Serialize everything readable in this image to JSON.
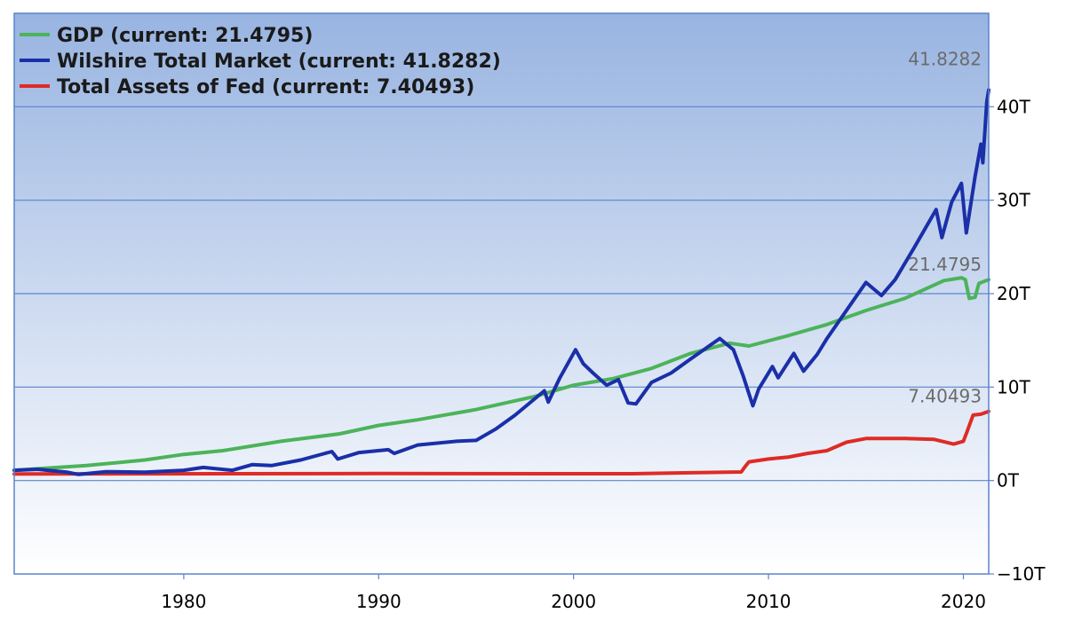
{
  "chart_data": {
    "type": "line",
    "title": "",
    "xlabel": "",
    "ylabel": "",
    "xlim": [
      1971.3,
      2021.3
    ],
    "ylim": [
      -10,
      50
    ],
    "grid": true,
    "legend_position": "top-left",
    "x_ticks": [
      1980,
      1990,
      2000,
      2010,
      2020
    ],
    "x_tick_labels": [
      "1980",
      "1990",
      "2000",
      "2010",
      "2020"
    ],
    "y_ticks": [
      40,
      30,
      20,
      10,
      0,
      -10
    ],
    "y_tick_labels": [
      "40T",
      "30T",
      "20T",
      "10T",
      "0T",
      "−10T"
    ],
    "series": [
      {
        "name": "GDP",
        "legend": "GDP (current: 21.4795)",
        "color": "#4cb35a",
        "end_label": "21.4795",
        "points": [
          [
            1971.3,
            1.1
          ],
          [
            1975,
            1.6
          ],
          [
            1978,
            2.2
          ],
          [
            1980,
            2.8
          ],
          [
            1982,
            3.2
          ],
          [
            1985,
            4.2
          ],
          [
            1988,
            5.0
          ],
          [
            1990,
            5.9
          ],
          [
            1992,
            6.5
          ],
          [
            1995,
            7.6
          ],
          [
            1998,
            9.0
          ],
          [
            2000,
            10.2
          ],
          [
            2002,
            10.9
          ],
          [
            2004,
            12.0
          ],
          [
            2006,
            13.6
          ],
          [
            2008,
            14.7
          ],
          [
            2009,
            14.4
          ],
          [
            2011,
            15.5
          ],
          [
            2013,
            16.7
          ],
          [
            2015,
            18.2
          ],
          [
            2017,
            19.5
          ],
          [
            2019,
            21.4
          ],
          [
            2019.9,
            21.7
          ],
          [
            2020.1,
            21.5
          ],
          [
            2020.3,
            19.5
          ],
          [
            2020.6,
            19.6
          ],
          [
            2020.8,
            21.1
          ],
          [
            2021.3,
            21.5
          ]
        ]
      },
      {
        "name": "Wilshire Total Market",
        "legend": "Wilshire Total Market (current: 41.8282)",
        "color": "#1a2fa8",
        "end_label": "41.8282",
        "points": [
          [
            1971.3,
            1.1
          ],
          [
            1972.5,
            1.2
          ],
          [
            1974,
            0.9
          ],
          [
            1974.6,
            0.65
          ],
          [
            1976,
            0.95
          ],
          [
            1978,
            0.9
          ],
          [
            1980,
            1.1
          ],
          [
            1981,
            1.4
          ],
          [
            1982.5,
            1.1
          ],
          [
            1983.5,
            1.7
          ],
          [
            1984.5,
            1.6
          ],
          [
            1986,
            2.2
          ],
          [
            1987.6,
            3.1
          ],
          [
            1987.9,
            2.3
          ],
          [
            1989,
            3.0
          ],
          [
            1990.5,
            3.3
          ],
          [
            1990.8,
            2.9
          ],
          [
            1992,
            3.8
          ],
          [
            1994,
            4.2
          ],
          [
            1995,
            4.3
          ],
          [
            1996,
            5.5
          ],
          [
            1997,
            7.0
          ],
          [
            1998.5,
            9.6
          ],
          [
            1998.7,
            8.4
          ],
          [
            1999.3,
            11.0
          ],
          [
            2000.1,
            14.0
          ],
          [
            2000.5,
            12.5
          ],
          [
            2001,
            11.5
          ],
          [
            2001.7,
            10.2
          ],
          [
            2002.3,
            10.8
          ],
          [
            2002.8,
            8.3
          ],
          [
            2003.2,
            8.2
          ],
          [
            2004,
            10.5
          ],
          [
            2005,
            11.5
          ],
          [
            2006,
            13.0
          ],
          [
            2007.5,
            15.2
          ],
          [
            2008.2,
            14.0
          ],
          [
            2008.7,
            11.2
          ],
          [
            2009.2,
            8.0
          ],
          [
            2009.5,
            9.8
          ],
          [
            2010.2,
            12.2
          ],
          [
            2010.5,
            11.0
          ],
          [
            2011.3,
            13.6
          ],
          [
            2011.8,
            11.7
          ],
          [
            2012.5,
            13.5
          ],
          [
            2013,
            15.2
          ],
          [
            2014,
            18.2
          ],
          [
            2015,
            21.2
          ],
          [
            2015.8,
            19.8
          ],
          [
            2016.5,
            21.5
          ],
          [
            2017.5,
            25.0
          ],
          [
            2018.6,
            29.0
          ],
          [
            2018.9,
            26.0
          ],
          [
            2019.4,
            29.8
          ],
          [
            2019.9,
            31.8
          ],
          [
            2020.15,
            26.5
          ],
          [
            2020.6,
            32.5
          ],
          [
            2020.9,
            36.0
          ],
          [
            2021.0,
            34.0
          ],
          [
            2021.2,
            40.5
          ],
          [
            2021.3,
            41.8
          ]
        ]
      },
      {
        "name": "Total Assets of Fed",
        "legend": "Total Assets of Fed (current: 7.40493)",
        "color": "#de2b26",
        "end_label": "7.40493",
        "points": [
          [
            1971.3,
            0.7
          ],
          [
            1990,
            0.75
          ],
          [
            2003,
            0.73
          ],
          [
            2008.6,
            0.92
          ],
          [
            2008.8,
            1.5
          ],
          [
            2009,
            2.0
          ],
          [
            2010,
            2.3
          ],
          [
            2011,
            2.5
          ],
          [
            2012,
            2.9
          ],
          [
            2013,
            3.2
          ],
          [
            2014,
            4.1
          ],
          [
            2015,
            4.5
          ],
          [
            2017,
            4.5
          ],
          [
            2018.5,
            4.4
          ],
          [
            2019.5,
            3.9
          ],
          [
            2020.0,
            4.2
          ],
          [
            2020.2,
            5.3
          ],
          [
            2020.5,
            7.0
          ],
          [
            2020.9,
            7.1
          ],
          [
            2021.3,
            7.4
          ]
        ]
      }
    ]
  }
}
